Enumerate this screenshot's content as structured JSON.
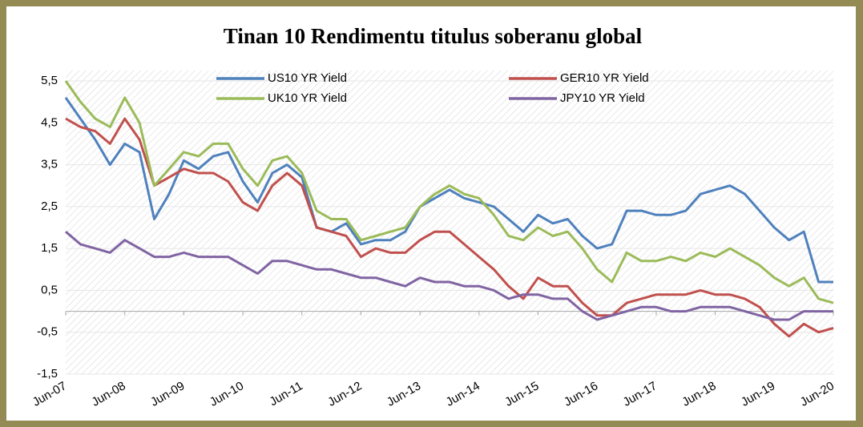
{
  "chart_data": {
    "type": "line",
    "title": "Tinan 10 Rendimentu titulus soberanu global",
    "x": [
      2007.5,
      2007.75,
      2008.0,
      2008.25,
      2008.5,
      2008.75,
      2009.0,
      2009.25,
      2009.5,
      2009.75,
      2010.0,
      2010.25,
      2010.5,
      2010.75,
      2011.0,
      2011.25,
      2011.5,
      2011.75,
      2012.0,
      2012.25,
      2012.5,
      2012.75,
      2013.0,
      2013.25,
      2013.5,
      2013.75,
      2014.0,
      2014.25,
      2014.5,
      2014.75,
      2015.0,
      2015.25,
      2015.5,
      2015.75,
      2016.0,
      2016.25,
      2016.5,
      2016.75,
      2017.0,
      2017.25,
      2017.5,
      2017.75,
      2018.0,
      2018.25,
      2018.5,
      2018.75,
      2019.0,
      2019.25,
      2019.5,
      2019.75,
      2020.0,
      2020.25,
      2020.5
    ],
    "series": [
      {
        "name": "US10 YR Yield",
        "color": "#4f81bd",
        "values": [
          5.1,
          4.6,
          4.1,
          3.5,
          4.0,
          3.8,
          2.2,
          2.8,
          3.6,
          3.4,
          3.7,
          3.8,
          3.1,
          2.6,
          3.3,
          3.5,
          3.2,
          2.0,
          1.9,
          2.1,
          1.6,
          1.7,
          1.7,
          1.9,
          2.5,
          2.7,
          2.9,
          2.7,
          2.6,
          2.5,
          2.2,
          1.9,
          2.3,
          2.1,
          2.2,
          1.8,
          1.5,
          1.6,
          2.4,
          2.4,
          2.3,
          2.3,
          2.4,
          2.8,
          2.9,
          3.0,
          2.8,
          2.4,
          2.0,
          1.7,
          1.9,
          0.7,
          0.7
        ]
      },
      {
        "name": "GER10 YR Yield",
        "color": "#c0504d",
        "values": [
          4.6,
          4.4,
          4.3,
          4.0,
          4.6,
          4.1,
          3.0,
          3.2,
          3.4,
          3.3,
          3.3,
          3.1,
          2.6,
          2.4,
          3.0,
          3.3,
          3.0,
          2.0,
          1.9,
          1.8,
          1.3,
          1.5,
          1.4,
          1.4,
          1.7,
          1.9,
          1.9,
          1.6,
          1.3,
          1.0,
          0.6,
          0.3,
          0.8,
          0.6,
          0.6,
          0.2,
          -0.1,
          -0.1,
          0.2,
          0.3,
          0.4,
          0.4,
          0.4,
          0.5,
          0.4,
          0.4,
          0.3,
          0.1,
          -0.3,
          -0.6,
          -0.3,
          -0.5,
          -0.4
        ]
      },
      {
        "name": "UK10 YR Yield",
        "color": "#9bbb59",
        "values": [
          5.5,
          5.0,
          4.6,
          4.4,
          5.1,
          4.5,
          3.0,
          3.4,
          3.8,
          3.7,
          4.0,
          4.0,
          3.4,
          3.0,
          3.6,
          3.7,
          3.3,
          2.4,
          2.2,
          2.2,
          1.7,
          1.8,
          1.9,
          2.0,
          2.5,
          2.8,
          3.0,
          2.8,
          2.7,
          2.3,
          1.8,
          1.7,
          2.0,
          1.8,
          1.9,
          1.5,
          1.0,
          0.7,
          1.4,
          1.2,
          1.2,
          1.3,
          1.2,
          1.4,
          1.3,
          1.5,
          1.3,
          1.1,
          0.8,
          0.6,
          0.8,
          0.3,
          0.2
        ]
      },
      {
        "name": "JPY10 YR Yield",
        "color": "#8064a2",
        "values": [
          1.9,
          1.6,
          1.5,
          1.4,
          1.7,
          1.5,
          1.3,
          1.3,
          1.4,
          1.3,
          1.3,
          1.3,
          1.1,
          0.9,
          1.2,
          1.2,
          1.1,
          1.0,
          1.0,
          0.9,
          0.8,
          0.8,
          0.7,
          0.6,
          0.8,
          0.7,
          0.7,
          0.6,
          0.6,
          0.5,
          0.3,
          0.4,
          0.4,
          0.3,
          0.3,
          0.0,
          -0.2,
          -0.1,
          0.0,
          0.1,
          0.1,
          0.0,
          0.0,
          0.1,
          0.1,
          0.1,
          0.0,
          -0.1,
          -0.2,
          -0.2,
          0.0,
          0.0,
          0.0
        ]
      }
    ],
    "xlim": [
      2007.5,
      2020.5
    ],
    "xticks": [
      {
        "value": 2007.5,
        "label": "Jun-07"
      },
      {
        "value": 2008.5,
        "label": "Jun-08"
      },
      {
        "value": 2009.5,
        "label": "Jun-09"
      },
      {
        "value": 2010.5,
        "label": "Jun-10"
      },
      {
        "value": 2011.5,
        "label": "Jun-11"
      },
      {
        "value": 2012.5,
        "label": "Jun-12"
      },
      {
        "value": 2013.5,
        "label": "Jun-13"
      },
      {
        "value": 2014.5,
        "label": "Jun-14"
      },
      {
        "value": 2015.5,
        "label": "Jun-15"
      },
      {
        "value": 2016.5,
        "label": "Jun-16"
      },
      {
        "value": 2017.5,
        "label": "Jun-17"
      },
      {
        "value": 2018.5,
        "label": "Jun-18"
      },
      {
        "value": 2019.5,
        "label": "Jun-19"
      },
      {
        "value": 2020.5,
        "label": "Jun-20"
      }
    ],
    "ylim": [
      -1.5,
      5.5
    ],
    "yticks": [
      {
        "value": -1.5,
        "label": "-1,5"
      },
      {
        "value": -0.5,
        "label": "-0,5"
      },
      {
        "value": 0.5,
        "label": "0,5"
      },
      {
        "value": 1.5,
        "label": "1,5"
      },
      {
        "value": 2.5,
        "label": "2,5"
      },
      {
        "value": 3.5,
        "label": "3,5"
      },
      {
        "value": 4.5,
        "label": "4,5"
      },
      {
        "value": 5.5,
        "label": "5,5"
      }
    ],
    "grid": true
  }
}
